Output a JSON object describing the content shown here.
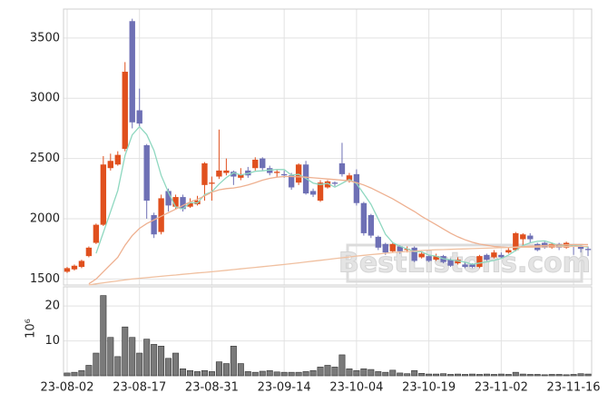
{
  "chart_data": {
    "type": "candlestick",
    "categories": [
      "23-08-02",
      null,
      null,
      null,
      null,
      null,
      null,
      null,
      null,
      null,
      "23-08-17",
      null,
      null,
      null,
      null,
      null,
      null,
      null,
      null,
      null,
      "23-08-31",
      null,
      null,
      null,
      null,
      null,
      null,
      null,
      null,
      null,
      "23-09-14",
      null,
      null,
      null,
      null,
      null,
      null,
      null,
      null,
      null,
      "23-10-04",
      null,
      null,
      null,
      null,
      null,
      null,
      null,
      null,
      null,
      "23-10-19",
      null,
      null,
      null,
      null,
      null,
      null,
      null,
      null,
      null,
      "23-11-02",
      null,
      null,
      null,
      null,
      null,
      null,
      null,
      null,
      null,
      "23-11-16",
      null,
      null
    ],
    "open": [
      1560,
      1580,
      1600,
      1690,
      1800,
      1950,
      2420,
      2450,
      2580,
      3640,
      2900,
      2610,
      2030,
      1890,
      2230,
      2100,
      2180,
      2100,
      2120,
      2280,
      2290,
      2350,
      2380,
      2390,
      2340,
      2400,
      2420,
      2500,
      2420,
      2380,
      2370,
      2360,
      2300,
      2450,
      2230,
      2150,
      2260,
      2300,
      2460,
      2320,
      2370,
      2130,
      2030,
      1850,
      1790,
      1730,
      1770,
      1740,
      1760,
      1680,
      1690,
      1660,
      1690,
      1660,
      1630,
      1620,
      1620,
      1600,
      1700,
      1680,
      1700,
      1720,
      1740,
      1830,
      1860,
      1790,
      1800,
      1760,
      1790,
      1760,
      1780,
      1770,
      1750
    ],
    "high": [
      1600,
      1620,
      1660,
      1770,
      1960,
      2520,
      2540,
      2560,
      3300,
      3660,
      3080,
      2620,
      2050,
      2200,
      2250,
      2200,
      2200,
      2170,
      2190,
      2470,
      2350,
      2740,
      2500,
      2400,
      2420,
      2430,
      2510,
      2510,
      2440,
      2410,
      2400,
      2380,
      2460,
      2480,
      2250,
      2320,
      2320,
      2310,
      2630,
      2380,
      2410,
      2140,
      2040,
      1860,
      1800,
      1800,
      1780,
      1770,
      1770,
      1730,
      1700,
      1710,
      1700,
      1670,
      1680,
      1640,
      1630,
      1700,
      1710,
      1740,
      1720,
      1760,
      1890,
      1880,
      1880,
      1800,
      1810,
      1800,
      1800,
      1810,
      1790,
      1780,
      1770
    ],
    "low": [
      1550,
      1570,
      1590,
      1680,
      1790,
      1940,
      2400,
      2440,
      2560,
      2750,
      2760,
      2000,
      1840,
      1870,
      2060,
      2080,
      2060,
      2090,
      2110,
      2150,
      2150,
      2330,
      2360,
      2280,
      2320,
      2340,
      2400,
      2400,
      2360,
      2350,
      2340,
      2240,
      2280,
      2200,
      2180,
      2140,
      2250,
      2270,
      2350,
      2300,
      2110,
      1860,
      1840,
      1740,
      1700,
      1720,
      1710,
      1720,
      1640,
      1670,
      1640,
      1650,
      1630,
      1600,
      1620,
      1590,
      1590,
      1590,
      1650,
      1670,
      1670,
      1710,
      1730,
      1780,
      1800,
      1730,
      1750,
      1750,
      1740,
      1750,
      1700,
      1720,
      1690
    ],
    "close": [
      1590,
      1610,
      1650,
      1760,
      1950,
      2450,
      2480,
      2530,
      3220,
      2800,
      2790,
      2150,
      1870,
      2170,
      2110,
      2180,
      2080,
      2130,
      2150,
      2460,
      2300,
      2400,
      2400,
      2350,
      2370,
      2360,
      2490,
      2420,
      2380,
      2390,
      2360,
      2260,
      2450,
      2210,
      2200,
      2300,
      2310,
      2290,
      2370,
      2360,
      2130,
      1880,
      1860,
      1760,
      1720,
      1790,
      1730,
      1750,
      1650,
      1710,
      1650,
      1690,
      1640,
      1610,
      1660,
      1600,
      1600,
      1690,
      1660,
      1720,
      1680,
      1740,
      1880,
      1870,
      1830,
      1740,
      1760,
      1790,
      1760,
      1800,
      1770,
      1750,
      1740
    ],
    "volume": [
      0.8,
      1,
      1.5,
      3,
      6.5,
      23,
      11,
      5.5,
      14,
      11,
      6.5,
      10.5,
      9,
      8.5,
      5,
      6.5,
      2,
      1.5,
      1.2,
      1.5,
      1.2,
      4,
      3.5,
      8.5,
      3.5,
      1.2,
      1,
      1.3,
      1.5,
      1.1,
      1,
      1,
      1,
      1.2,
      1.5,
      2.5,
      3,
      2.5,
      6,
      2,
      1.5,
      2,
      1.8,
      1.2,
      1,
      1.6,
      0.8,
      0.6,
      1.5,
      0.7,
      0.5,
      0.5,
      0.6,
      0.4,
      0.5,
      0.4,
      0.5,
      0.4,
      0.5,
      0.4,
      0.5,
      0.4,
      1,
      0.5,
      0.4,
      0.4,
      0.3,
      0.4,
      0.4,
      0.3,
      0.4,
      0.6,
      0.5
    ],
    "up_color": "#e0501e",
    "down_color": "#6e70b5",
    "volume_color": "#7a7a7a",
    "lines": [
      {
        "color": "#8fd8c0",
        "values": [
          null,
          null,
          null,
          null,
          1712,
          1884,
          2058,
          2234,
          2526,
          2696,
          2764,
          2698,
          2566,
          2360,
          2218,
          2096,
          2082,
          2134,
          2130,
          2200,
          2224,
          2288,
          2342,
          2382,
          2364,
          2376,
          2394,
          2398,
          2404,
          2408,
          2408,
          2362,
          2368,
          2334,
          2296,
          2284,
          2294,
          2262,
          2294,
          2326,
          2292,
          2206,
          2120,
          1998,
          1870,
          1802,
          1772,
          1750,
          1728,
          1726,
          1698,
          1690,
          1668,
          1660,
          1650,
          1640,
          1622,
          1632,
          1642,
          1654,
          1670,
          1698,
          1736,
          1778,
          1800,
          1812,
          1816,
          1798,
          1776,
          1770,
          1776,
          1774,
          1764
        ]
      },
      {
        "color": "#eeb090",
        "values": [
          null,
          null,
          null,
          1460,
          1500,
          1560,
          1620,
          1680,
          1780,
          1860,
          1920,
          1960,
          1990,
          2020,
          2050,
          2080,
          2110,
          2140,
          2160,
          2190,
          2220,
          2240,
          2250,
          2255,
          2265,
          2280,
          2300,
          2320,
          2335,
          2345,
          2350,
          2350,
          2348,
          2345,
          2340,
          2335,
          2330,
          2325,
          2320,
          2315,
          2300,
          2280,
          2255,
          2225,
          2195,
          2165,
          2130,
          2095,
          2060,
          2020,
          1985,
          1950,
          1915,
          1880,
          1850,
          1825,
          1805,
          1790,
          1780,
          1770,
          1765,
          1762,
          1765,
          1768,
          1772,
          1775,
          1778,
          1780,
          1782,
          1784,
          1785,
          1786,
          1786
        ]
      },
      {
        "color": "#f0c0a0",
        "values": [
          null,
          null,
          null,
          1450,
          1460,
          1468,
          1476,
          1484,
          1492,
          1500,
          1506,
          1511,
          1517,
          1522,
          1528,
          1533,
          1539,
          1544,
          1550,
          1555,
          1560,
          1566,
          1572,
          1578,
          1584,
          1590,
          1596,
          1602,
          1608,
          1614,
          1620,
          1627,
          1634,
          1641,
          1648,
          1655,
          1662,
          1669,
          1676,
          1683,
          1690,
          1696,
          1702,
          1708,
          1714,
          1720,
          1724,
          1728,
          1732,
          1736,
          1740,
          1742,
          1744,
          1746,
          1748,
          1750,
          1752,
          1754,
          1756,
          1758,
          1760,
          1761,
          1762,
          1763,
          1764,
          1765,
          1766,
          1767,
          1768,
          1769,
          1770,
          1771,
          1772
        ]
      }
    ],
    "xlim": [
      -0.5,
      72.5
    ],
    "ylim": [
      1450,
      3740
    ],
    "yticks": [
      1500,
      2000,
      2500,
      3000,
      3500
    ],
    "volume_ylim": [
      0,
      25.5
    ],
    "volume_yticks": [
      10,
      20
    ],
    "volume_ylabel": "10⁶",
    "grid": true,
    "watermark": "BestListons.com"
  }
}
